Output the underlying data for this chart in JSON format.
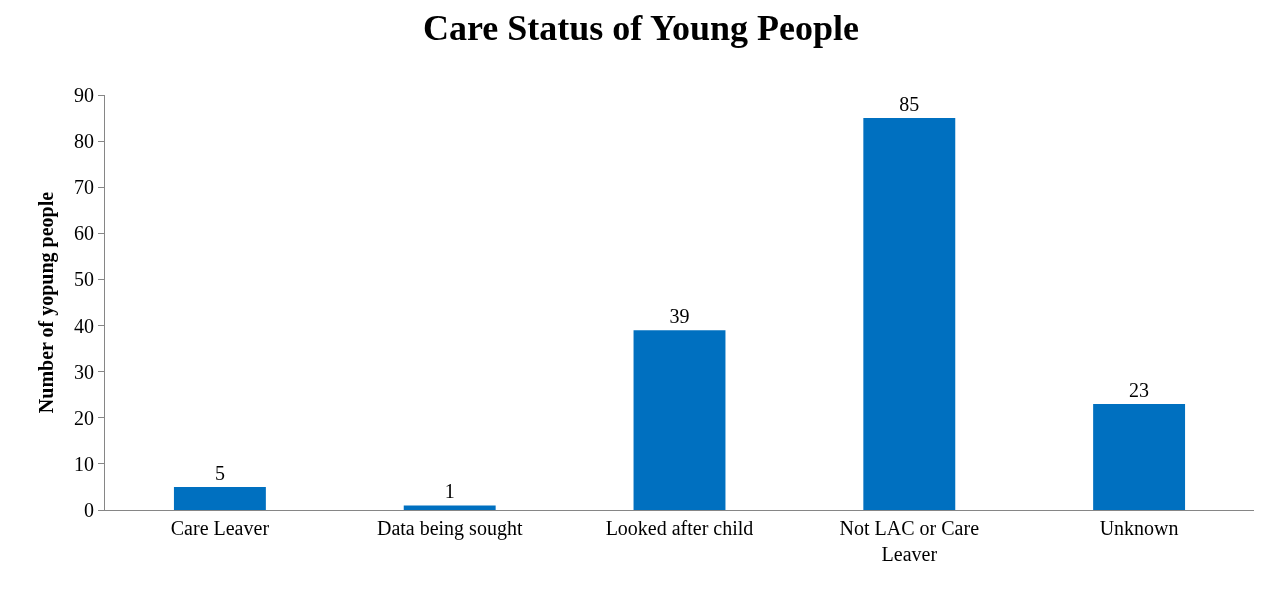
{
  "chart_data": {
    "type": "bar",
    "title": "Care Status of Young People",
    "ylabel": "Number of yopung people",
    "categories": [
      "Care Leaver",
      "Data being sought",
      "Looked after child",
      "Not LAC or Care Leaver",
      "Unknown"
    ],
    "values": [
      5,
      1,
      39,
      85,
      23
    ],
    "color": "#0070c0",
    "ylim": [
      0,
      90
    ],
    "yticks": [
      0,
      10,
      20,
      30,
      40,
      50,
      60,
      70,
      80,
      90
    ],
    "legend": false,
    "data_labels": true
  }
}
